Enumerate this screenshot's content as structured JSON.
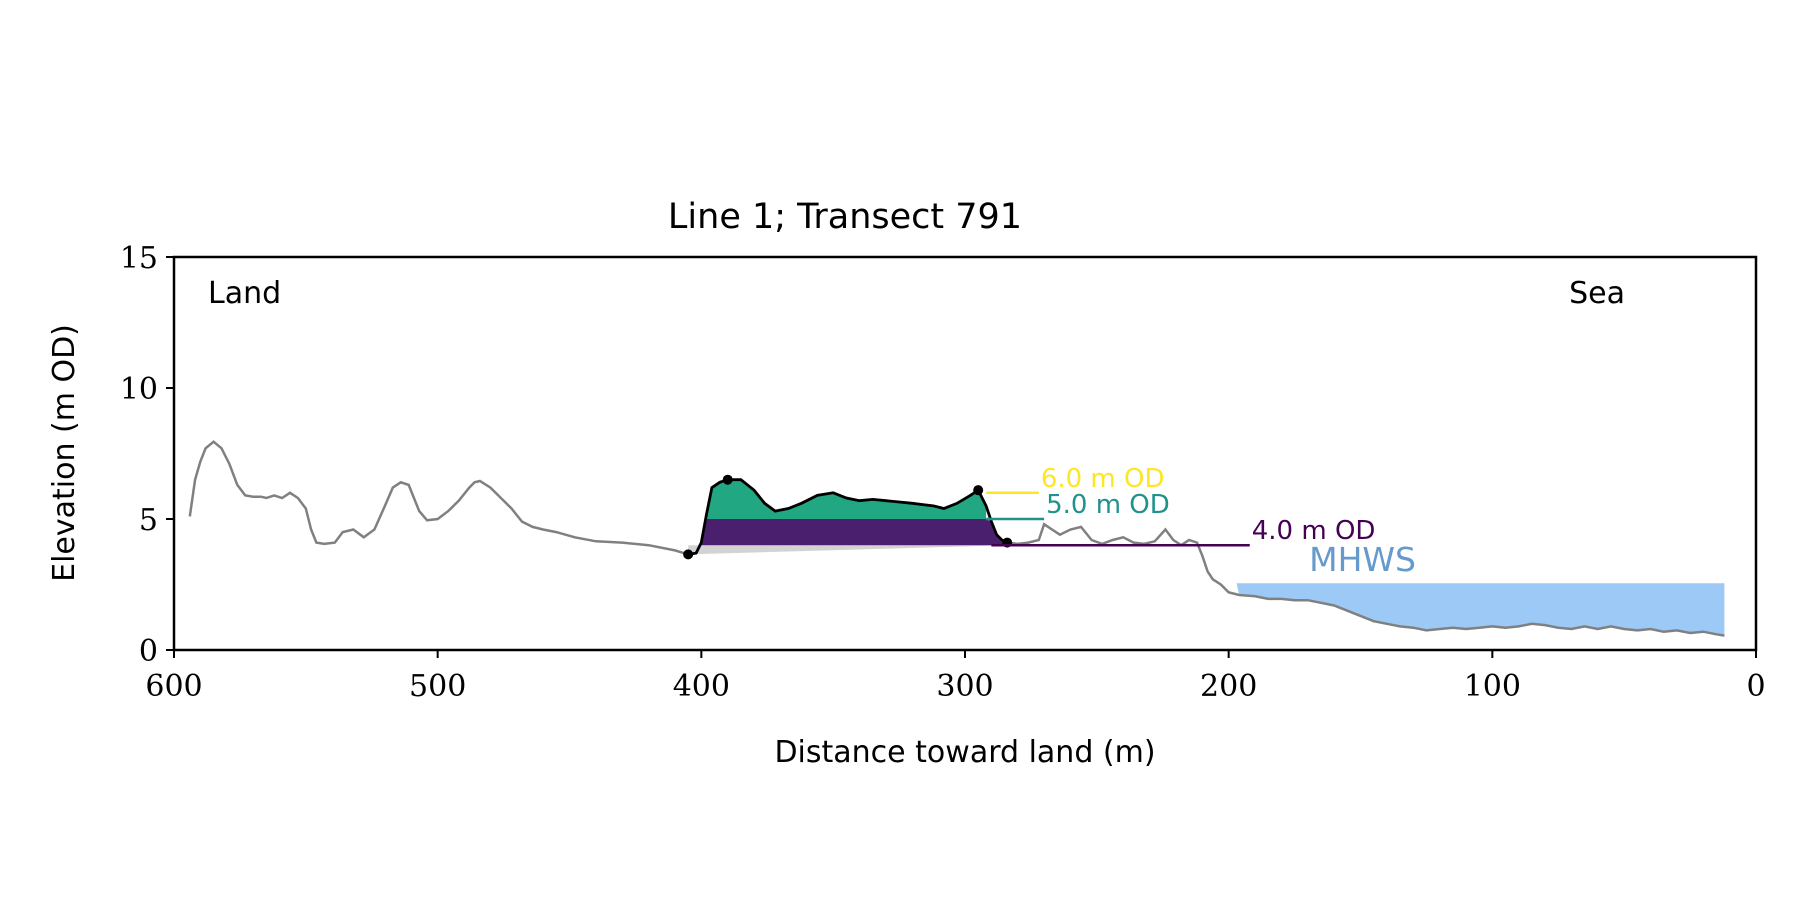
{
  "chart_data": {
    "type": "line",
    "title": "Line 1; Transect 791",
    "xlabel": "Distance toward land (m)",
    "ylabel": "Elevation (m OD)",
    "xlim": [
      600,
      0
    ],
    "ylim": [
      0,
      15
    ],
    "x_ticks": [
      600,
      500,
      400,
      300,
      200,
      100,
      0
    ],
    "y_ticks": [
      0,
      5,
      10,
      15
    ],
    "x_tick_labels": [
      "600",
      "500",
      "400",
      "300",
      "200",
      "100",
      "0"
    ],
    "y_tick_labels": [
      "0",
      "5",
      "10",
      "15"
    ],
    "grid": false,
    "annotations": {
      "land": "Land",
      "sea": "Sea"
    },
    "colors": {
      "profile": "#808080",
      "dune_outline": "#000000",
      "band_4_5": "#4a1f6e",
      "band_5_6": "#22a783",
      "below_4": "#d3d3d3",
      "mhws_fill": "#9cc9f5",
      "mhws_text": "#6699cc"
    },
    "profile": {
      "x": [
        594,
        592,
        590,
        588,
        585,
        582,
        579,
        576,
        573,
        570,
        567,
        565,
        562,
        559,
        556,
        553,
        550,
        548,
        546,
        543,
        539,
        536,
        532,
        528,
        524,
        520,
        517,
        514,
        511,
        507,
        504,
        500,
        496,
        492,
        488,
        486,
        484,
        480,
        476,
        472,
        468,
        464,
        460,
        455,
        448,
        440,
        430,
        420,
        410,
        405,
        402,
        400,
        398,
        396,
        393,
        390,
        385,
        380,
        376,
        372,
        367,
        362,
        356,
        350,
        345,
        340,
        335,
        330,
        325,
        320,
        316,
        312,
        308,
        303,
        298,
        295,
        292,
        290,
        288,
        286,
        284,
        280,
        276,
        272,
        270,
        267,
        264,
        260,
        256,
        252,
        248,
        244,
        240,
        236,
        232,
        228,
        224,
        221,
        218,
        215,
        212,
        210,
        208,
        206,
        203,
        200,
        196,
        190,
        185,
        180,
        175,
        170,
        165,
        160,
        155,
        150,
        145,
        140,
        135,
        130,
        125,
        120,
        115,
        110,
        105,
        100,
        95,
        90,
        85,
        80,
        75,
        70,
        65,
        60,
        55,
        50,
        45,
        40,
        35,
        30,
        25,
        20,
        15,
        12
      ],
      "y": [
        5.1,
        6.5,
        7.2,
        7.7,
        7.95,
        7.7,
        7.1,
        6.3,
        5.9,
        5.85,
        5.85,
        5.8,
        5.9,
        5.8,
        6.0,
        5.8,
        5.4,
        4.6,
        4.1,
        4.05,
        4.1,
        4.5,
        4.6,
        4.3,
        4.6,
        5.5,
        6.2,
        6.4,
        6.3,
        5.3,
        4.95,
        5.0,
        5.3,
        5.7,
        6.2,
        6.4,
        6.45,
        6.2,
        5.8,
        5.4,
        4.9,
        4.7,
        4.6,
        4.5,
        4.3,
        4.15,
        4.1,
        4.0,
        3.8,
        3.65,
        3.7,
        4.1,
        5.2,
        6.2,
        6.4,
        6.5,
        6.5,
        6.1,
        5.6,
        5.3,
        5.4,
        5.6,
        5.9,
        6.0,
        5.8,
        5.7,
        5.75,
        5.7,
        5.65,
        5.6,
        5.55,
        5.5,
        5.4,
        5.6,
        5.9,
        6.1,
        5.5,
        4.9,
        4.4,
        4.2,
        4.1,
        4.05,
        4.1,
        4.2,
        4.8,
        4.6,
        4.4,
        4.6,
        4.7,
        4.2,
        4.05,
        4.2,
        4.3,
        4.1,
        4.05,
        4.15,
        4.6,
        4.2,
        4.0,
        4.2,
        4.1,
        3.6,
        3.0,
        2.7,
        2.5,
        2.2,
        2.1,
        2.05,
        1.95,
        1.95,
        1.9,
        1.9,
        1.8,
        1.7,
        1.5,
        1.3,
        1.1,
        1.0,
        0.9,
        0.85,
        0.75,
        0.8,
        0.85,
        0.8,
        0.85,
        0.9,
        0.85,
        0.9,
        1.0,
        0.95,
        0.85,
        0.8,
        0.9,
        0.8,
        0.9,
        0.8,
        0.75,
        0.8,
        0.7,
        0.75,
        0.65,
        0.7,
        0.6,
        0.55
      ]
    },
    "dune": {
      "x": [
        405,
        402,
        400,
        398,
        396,
        393,
        390,
        385,
        380,
        376,
        372,
        367,
        362,
        356,
        350,
        345,
        340,
        335,
        330,
        325,
        320,
        316,
        312,
        308,
        303,
        298,
        295,
        292,
        290,
        288,
        286,
        284
      ],
      "y": [
        3.65,
        3.7,
        4.1,
        5.2,
        6.2,
        6.4,
        6.5,
        6.5,
        6.1,
        5.6,
        5.3,
        5.4,
        5.6,
        5.9,
        6.0,
        5.8,
        5.7,
        5.75,
        5.7,
        5.65,
        5.6,
        5.55,
        5.5,
        5.4,
        5.6,
        5.9,
        6.1,
        5.5,
        4.9,
        4.4,
        4.2,
        4.1
      ],
      "points": [
        {
          "x": 405,
          "y": 3.65
        },
        {
          "x": 390,
          "y": 6.5
        },
        {
          "x": 295,
          "y": 6.1
        },
        {
          "x": 284,
          "y": 4.1
        }
      ]
    },
    "levels": [
      {
        "value": 6.0,
        "label": "6.0 m OD",
        "color": "#fde725",
        "x_start": 292,
        "x_end": 272
      },
      {
        "value": 5.0,
        "label": "5.0 m OD",
        "color": "#21918c",
        "x_start": 292,
        "x_end": 270
      },
      {
        "value": 4.0,
        "label": "4.0 m OD",
        "color": "#440154",
        "x_start": 290,
        "x_end": 192
      }
    ],
    "mhws": {
      "value": 2.55,
      "x_start": 197,
      "x_end": 12,
      "label": "MHWS"
    }
  }
}
